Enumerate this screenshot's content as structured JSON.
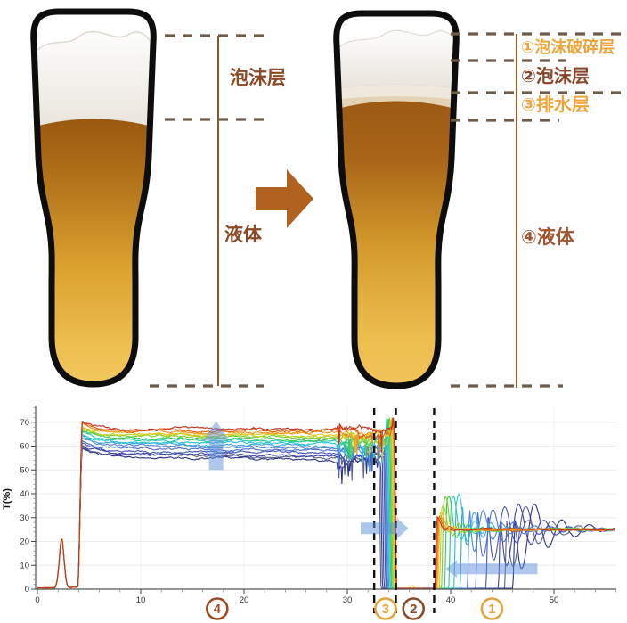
{
  "illustration": {
    "left_glass": {
      "foam_label": "泡沫层",
      "liquid_label": "液体",
      "label_color": "#8b4a26"
    },
    "right_glass": {
      "layer1": {
        "label": "①泡沫破碎层",
        "color": "#efa43a"
      },
      "layer2": {
        "label": "②泡沫层",
        "color": "#8b4226"
      },
      "layer3": {
        "label": "③排水层",
        "color": "#efa43a"
      },
      "layer4": {
        "label": "④液体",
        "color": "#a2542f"
      }
    },
    "arrow_color": "#b2621f",
    "dash_color": "#6f5b49",
    "measure_line_color": "#a0602c"
  },
  "chart_data": {
    "type": "line",
    "title": "",
    "xlabel": "",
    "ylabel": "T(%)",
    "x_range": [
      0,
      56
    ],
    "y_range": [
      0,
      77
    ],
    "x_ticks": [
      0,
      10,
      20,
      30,
      40,
      50
    ],
    "y_ticks": [
      0,
      10,
      20,
      30,
      40,
      50,
      60,
      70
    ],
    "x_minor_step": 2,
    "y_minor_step": 2,
    "grid": true,
    "legend": "none",
    "description": "~16 overlaid transmission curves (spectral rainbow, red=top of band, navy=bottom). All start near 0, small peak ~21% at x=2.35, jump at x=3.9 to a 55-71% band (stage 4 liquid), turn noisy after x=29, collapse to ~0 between x=32.6-34.7 (stage 3 drainage, final spike to ~72), stay ~0 until x=38.4 (stage 2 foam), then recover one-by-one with damped oscillations to a ~25% plateau (stage 1 broken foam).",
    "initial_peak": {
      "x": 2.35,
      "height": 21
    },
    "band_rise_x": 3.9,
    "crash_spike_top": 72,
    "plateau_after_recovery": 25,
    "dashed_lines_x": [
      32.6,
      34.7,
      38.4
    ],
    "stage_markers": [
      {
        "label": "4",
        "x": 17.4,
        "color": "#9c4a22"
      },
      {
        "label": "3",
        "x": 33.7,
        "color": "#e2a23c"
      },
      {
        "label": "2",
        "x": 36.4,
        "color": "#8a4a26"
      },
      {
        "label": "1",
        "x": 44.0,
        "color": "#e2a23c"
      }
    ],
    "arrow_color": "#5e8fd8",
    "arrows": [
      {
        "dir": "up",
        "x": 17.3,
        "y_from": 50,
        "y_to": 70.5
      },
      {
        "dir": "right",
        "x_from": 31.3,
        "x_to": 35.9,
        "y": 25.5
      },
      {
        "dir": "left",
        "x_from": 48.4,
        "x_to": 39.5,
        "y": 8.5
      }
    ],
    "series": [
      {
        "color": "#c5311c",
        "band": 67.3,
        "drift": 0.2,
        "drop_x": 34.55,
        "rise_x": 38.45,
        "spike": 30.5,
        "amp": 1.5,
        "period": 0.9,
        "decay": 0.7,
        "sign": 1
      },
      {
        "color": "#e55f16",
        "band": 66.6,
        "drift": 0.3,
        "drop_x": 34.5,
        "rise_x": 38.55,
        "spike": 30,
        "amp": 2,
        "period": 0.95,
        "decay": 0.8,
        "sign": 1
      },
      {
        "color": "#f29421",
        "band": 66.0,
        "drift": 0.4,
        "drop_x": 34.45,
        "rise_x": 38.65,
        "spike": 31,
        "amp": 2.5,
        "period": 1.0,
        "decay": 0.9,
        "sign": 1
      },
      {
        "color": "#e9c41f",
        "band": 65.4,
        "drift": 0.5,
        "drop_x": 34.4,
        "rise_x": 38.75,
        "spike": 32,
        "amp": 3.5,
        "period": 1.05,
        "decay": 0.95,
        "sign": 1,
        "bump": 1
      },
      {
        "color": "#b8d422",
        "band": 64.8,
        "drift": 0.6,
        "drop_x": 34.3,
        "rise_x": 38.9,
        "spike": 34,
        "amp": 5,
        "period": 1.1,
        "decay": 1.0,
        "sign": 1
      },
      {
        "color": "#77cf2f",
        "band": 64.2,
        "drift": 0.7,
        "drop_x": 34.2,
        "rise_x": 39.1,
        "spike": 37,
        "amp": 9,
        "period": 1.15,
        "decay": 1.05,
        "sign": 1
      },
      {
        "color": "#3bc753",
        "band": 63.5,
        "drift": 0.8,
        "drop_x": 34.1,
        "rise_x": 39.4,
        "spike": 37,
        "amp": 10,
        "period": 1.25,
        "decay": 1.1,
        "sign": 1
      },
      {
        "color": "#25c9a4",
        "band": 62.8,
        "drift": 0.9,
        "drop_x": 34.0,
        "rise_x": 39.8,
        "spike": 36,
        "amp": 11,
        "period": 1.35,
        "decay": 1.2,
        "sign": 1
      },
      {
        "color": "#25c3d8",
        "band": 62.0,
        "drift": 1.0,
        "drop_x": 33.9,
        "rise_x": 40.3,
        "spike": 36,
        "amp": 12,
        "period": 1.45,
        "decay": 1.4,
        "sign": 1
      },
      {
        "color": "#3ba4e0",
        "band": 61.2,
        "drift": 1.1,
        "drop_x": 33.8,
        "rise_x": 40.9,
        "spike": 35,
        "amp": 13,
        "period": 1.6,
        "decay": 1.6,
        "sign": -1
      },
      {
        "color": "#4f87dd",
        "band": 60.3,
        "drift": 1.2,
        "drop_x": 33.7,
        "rise_x": 41.6,
        "spike": 34,
        "amp": 15,
        "period": 1.8,
        "decay": 1.8,
        "sign": -1
      },
      {
        "color": "#4b6fd2",
        "band": 59.3,
        "drift": 1.3,
        "drop_x": 33.6,
        "rise_x": 42.4,
        "spike": 33,
        "amp": 17,
        "period": 2.0,
        "decay": 2.0,
        "sign": -1
      },
      {
        "color": "#4256bc",
        "band": 58.3,
        "drift": 1.4,
        "drop_x": 33.5,
        "rise_x": 43.4,
        "spike": 32,
        "amp": 19,
        "period": 2.2,
        "decay": 2.2,
        "sign": -1
      },
      {
        "color": "#3a44a4",
        "band": 57.2,
        "drift": 1.55,
        "drop_x": 33.35,
        "rise_x": 44.6,
        "spike": 31,
        "amp": 21,
        "period": 2.4,
        "decay": 2.5,
        "sign": -1
      },
      {
        "color": "#2b3488",
        "band": 55.9,
        "drift": 1.7,
        "drop_x": 33.2,
        "rise_x": 46.0,
        "spike": 30,
        "amp": 22,
        "period": 2.6,
        "decay": 2.8,
        "sign": -1
      },
      {
        "color": "#5c5f86",
        "band": 56.6,
        "drift": 1.6,
        "drop_x": 33.05,
        "rise_x": 45.2,
        "spike": 29,
        "amp": 20,
        "period": 2.5,
        "decay": 2.6,
        "sign": -1
      }
    ]
  }
}
